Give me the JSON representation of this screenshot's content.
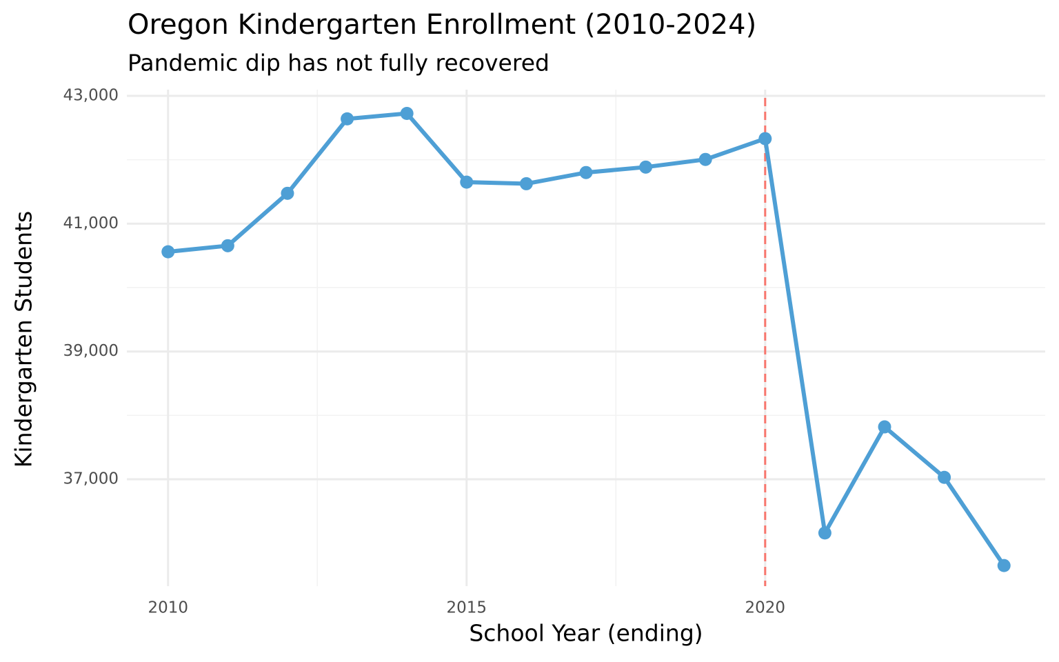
{
  "chart_data": {
    "type": "line",
    "title": "Oregon Kindergarten Enrollment (2010-2024)",
    "subtitle": "Pandemic dip has not fully recovered",
    "x_label": "School Year (ending)",
    "y_label": "Kindergarten Students",
    "x": [
      2010,
      2011,
      2012,
      2013,
      2014,
      2015,
      2016,
      2017,
      2018,
      2019,
      2020,
      2021,
      2022,
      2023,
      2024
    ],
    "series": [
      {
        "name": "Kindergarten Students",
        "color": "#4e9fd5",
        "values": [
          40560,
          40655,
          41475,
          42640,
          42725,
          41650,
          41625,
          41800,
          41885,
          42005,
          42330,
          36160,
          37820,
          37030,
          35650
        ]
      }
    ],
    "xlim": [
      2009.31,
      2024.69
    ],
    "ylim": [
      35328,
      43097
    ],
    "xticks": [
      2010,
      2015,
      2020
    ],
    "yticks": [
      {
        "value": 37000,
        "label": "37,000"
      },
      {
        "value": 39000,
        "label": "39,000"
      },
      {
        "value": 41000,
        "label": "41,000"
      },
      {
        "value": 43000,
        "label": "43,000"
      }
    ],
    "vline": {
      "x": 2020,
      "color": "#f8766d"
    },
    "grid": true
  }
}
